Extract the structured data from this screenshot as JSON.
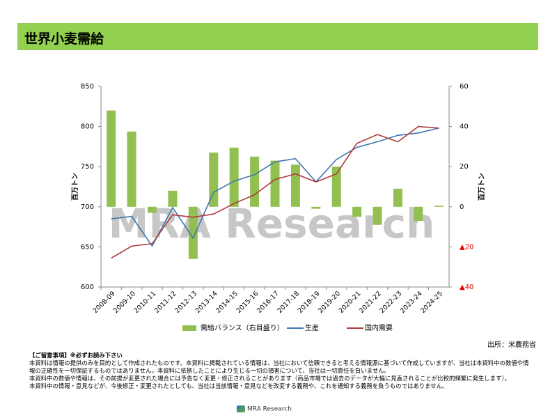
{
  "header": {
    "title": "世界小麦需給"
  },
  "chart_data": {
    "type": "bar-line",
    "watermark": "MRA Research",
    "y_label": "百万トン",
    "y2_label": "百万トン",
    "categories": [
      "2008-09",
      "2009-10",
      "2010-11",
      "2011-12",
      "2012-13",
      "2013-14",
      "2014-15",
      "2015-16",
      "2016-17",
      "2017-18",
      "2018-19",
      "2019-20",
      "2020-21",
      "2021-22",
      "2022-23",
      "2023-24",
      "2024-25"
    ],
    "series": [
      {
        "name": "需給バランス（右目盛り）",
        "type": "bar",
        "axis": "y2",
        "color": "#92c050",
        "values": [
          48,
          37.5,
          -3,
          8,
          -26,
          27,
          29.5,
          25,
          23,
          21,
          -1,
          20,
          -5,
          -9,
          9,
          -7,
          0.5
        ]
      },
      {
        "name": "生産",
        "type": "line",
        "color": "#3f76b0",
        "values": [
          685,
          688,
          651,
          699,
          661,
          718,
          732,
          740,
          756,
          760,
          731,
          759,
          774,
          781,
          789,
          792,
          798
        ]
      },
      {
        "name": "国内需要",
        "type": "line",
        "color": "#b03a3a",
        "values": [
          636,
          651,
          654,
          690,
          687,
          691,
          704,
          715,
          734,
          741,
          731,
          741,
          779,
          790,
          781,
          800,
          798
        ]
      }
    ],
    "ylim": [
      600,
      850
    ],
    "yticks": [
      600,
      650,
      700,
      750,
      800,
      850
    ],
    "y2lim": [
      -40,
      60
    ],
    "y2ticks": [
      {
        "value": -40,
        "label": "▲40"
      },
      {
        "value": -20,
        "label": "▲20"
      },
      0,
      20,
      40,
      60
    ],
    "negative_tick_color": "#e00000",
    "legend": "bottom"
  },
  "source": "出所：米農務省",
  "notes": {
    "heading": "【ご留意事項】※必ずお読み下さい",
    "items": [
      "本資料は情報の提供のみを目的として作成されたものです。本資料に掲載されている情報は、当社において信頼できると考える情報源に基づいて作成していますが、当社は本資料中の数値や情報の正確性を一切保証するものではありません。本資料に依拠したことにより生じる一切の損害について、当社は一切責任を負いません。",
      "本資料中の数値や情報は、その前提が変更された場合には予告なく変更・修正されることがあります（商品市場では過去のデータが大幅に見直されることが比較的頻繁に発生します）。",
      "本資料中の情報・意見などが、今後修正・変更されたとしても、当社は当該情報・意見などを改変する義務や、これを通知する義務を負うものではありません。"
    ]
  },
  "footer": {
    "logo": "MRA Research"
  }
}
